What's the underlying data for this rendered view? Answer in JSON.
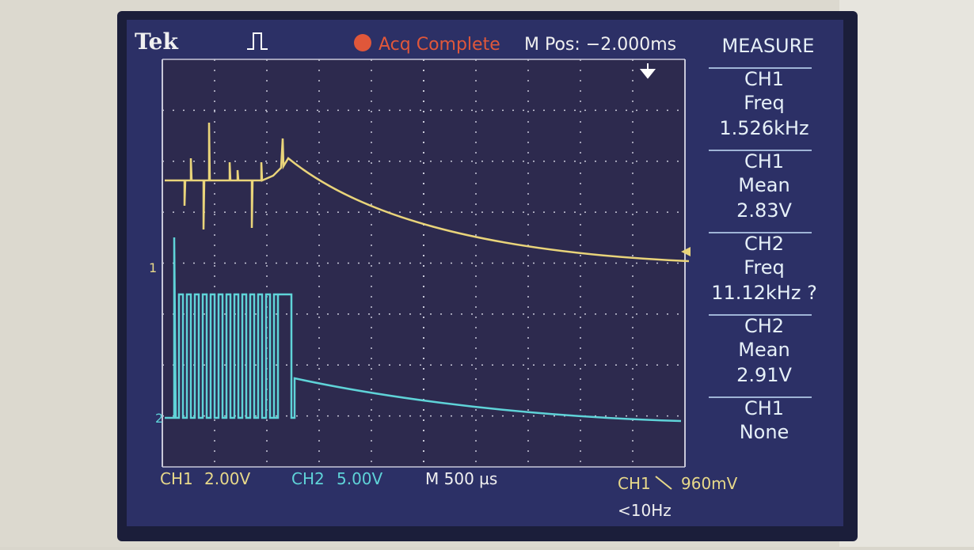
{
  "header": {
    "brand": "Tek",
    "status": "Acq Complete",
    "position": "M Pos: −2.000ms"
  },
  "measure": {
    "title": "MEASURE",
    "items": [
      {
        "source": "CH1",
        "type": "Freq",
        "value": "1.526kHz"
      },
      {
        "source": "CH1",
        "type": "Mean",
        "value": "2.83V"
      },
      {
        "source": "CH2",
        "type": "Freq",
        "value": "11.12kHz ?"
      },
      {
        "source": "CH2",
        "type": "Mean",
        "value": "2.91V"
      },
      {
        "source": "CH1",
        "type": "None"
      }
    ]
  },
  "markers": {
    "ch1": "1",
    "ch2": "2"
  },
  "footer": {
    "ch1": "CH1",
    "ch1_scale": "2.00V",
    "ch2": "CH2",
    "ch2_scale": "5.00V",
    "timebase": "M 500 µs",
    "trigger_source": "CH1",
    "trigger_level": "960mV",
    "trigger_freq": "<10Hz"
  }
}
